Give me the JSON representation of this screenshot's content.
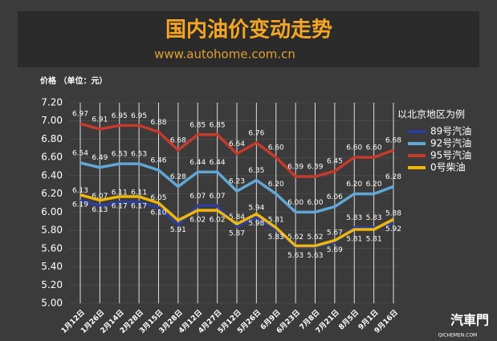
{
  "chart_data": {
    "type": "line",
    "title": "国内油价变动走势",
    "subtitle": "www.autohome.com.cn",
    "y_label": "价格 （单位：元）",
    "legend_title": "以北京地区为例",
    "watermark": "汽車門",
    "watermark_sub": "QICHEMEN.COM",
    "categories": [
      "1月12日",
      "1月26日",
      "2月14日",
      "2月28日",
      "3月15日",
      "3月28日",
      "4月12日",
      "4月27日",
      "5月12日",
      "5月26日",
      "6月9日",
      "6月23日",
      "7月8日",
      "7月21日",
      "8月5日",
      "9月1日",
      "9月16日"
    ],
    "ylim": [
      5.0,
      7.2
    ],
    "yticks": [
      {
        "value": 5.0,
        "label": "5.00"
      },
      {
        "value": 5.2,
        "label": "5.20"
      },
      {
        "value": 5.4,
        "label": "5.40"
      },
      {
        "value": 5.6,
        "label": "5.60"
      },
      {
        "value": 5.8,
        "label": "5.80"
      },
      {
        "value": 6.0,
        "label": "6.00"
      },
      {
        "value": 6.2,
        "label": "6.20"
      },
      {
        "value": 6.4,
        "label": "6.40"
      },
      {
        "value": 6.6,
        "label": "6.60"
      },
      {
        "value": 6.8,
        "label": "6.80"
      },
      {
        "value": 7.0,
        "label": "7.00"
      },
      {
        "value": 7.2,
        "label": "7.20"
      }
    ],
    "grid": true,
    "series": [
      {
        "name": "89号汽油",
        "color": "#2c3e9e",
        "label_pos": "above",
        "values": [
          6.13,
          6.07,
          6.11,
          6.11,
          6.05,
          5.86,
          6.07,
          6.07,
          5.84,
          5.94,
          5.81,
          5.62,
          5.62,
          5.67,
          5.83,
          5.83,
          5.88
        ],
        "value_labels": [
          "6.13",
          "6.07",
          "6.11",
          "6.11",
          "6.05",
          null,
          "6.07",
          "6.07",
          "5.84",
          "5.94",
          "5.81",
          "5.62",
          "5.62",
          "5.67",
          "5.83",
          "5.83",
          "5.88"
        ]
      },
      {
        "name": "92号汽油",
        "color": "#5fa8d8",
        "label_pos": "above",
        "values": [
          6.54,
          6.49,
          6.53,
          6.53,
          6.46,
          6.28,
          6.44,
          6.44,
          6.23,
          6.35,
          6.2,
          6.0,
          6.0,
          6.06,
          6.2,
          6.2,
          6.28
        ],
        "value_labels": [
          "6.54",
          "6.49",
          "6.53",
          "6.53",
          "6.46",
          "6.28",
          "6.44",
          "6.44",
          "6.23",
          "6.35",
          "6.20",
          "6.00",
          "6.00",
          "6.06",
          "6.20",
          "6.20",
          "6.28"
        ]
      },
      {
        "name": "95号汽油",
        "color": "#c8392b",
        "label_pos": "above",
        "values": [
          6.97,
          6.91,
          6.95,
          6.95,
          6.88,
          6.68,
          6.85,
          6.85,
          6.64,
          6.76,
          6.6,
          6.39,
          6.39,
          6.45,
          6.6,
          6.6,
          6.68
        ],
        "value_labels": [
          "6.97",
          "6.91",
          "6.95",
          "6.95",
          "6.88",
          "6.68",
          "6.85",
          "6.85",
          "6.64",
          "6.76",
          "6.60",
          "6.39",
          "6.39",
          "6.45",
          "6.60",
          "6.60",
          "6.68"
        ]
      },
      {
        "name": "0号柴油",
        "color": "#f2b705",
        "label_pos": "below",
        "values": [
          6.19,
          6.13,
          6.17,
          6.17,
          6.1,
          5.91,
          6.02,
          6.02,
          5.87,
          5.98,
          5.83,
          5.63,
          5.63,
          5.69,
          5.81,
          5.81,
          5.92
        ],
        "value_labels": [
          "6.19",
          "6.13",
          "6.17",
          "6.17",
          "6.10",
          "5.91",
          "6.02",
          "6.02",
          "5.87",
          "5.98",
          "5.83",
          "5.63",
          "5.63",
          "5.69",
          "5.81",
          "5.81",
          "5.92"
        ]
      }
    ]
  }
}
